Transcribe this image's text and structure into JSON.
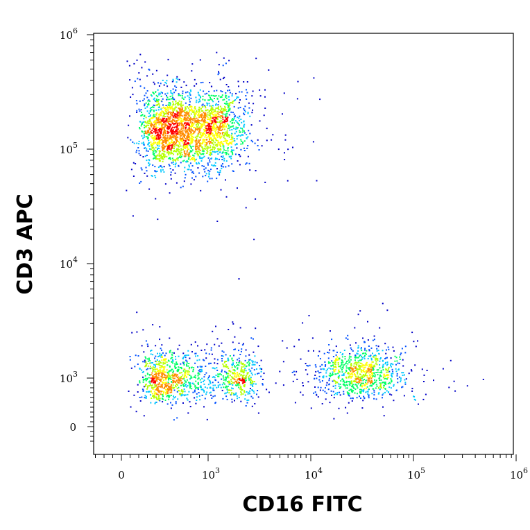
{
  "chart_data": {
    "type": "scatter",
    "style": "density dot plot (flow cytometry)",
    "xlabel": "CD16 FITC",
    "ylabel": "CD3 APC",
    "x_scale": "biexponential",
    "y_scale": "biexponential",
    "xlim": [
      -300,
      1000000
    ],
    "ylim": [
      -300,
      1000000
    ],
    "x_ticks": [
      {
        "base": "0",
        "exp": "",
        "value": 0
      },
      {
        "base": "10",
        "exp": "3",
        "value": 1000
      },
      {
        "base": "10",
        "exp": "4",
        "value": 10000
      },
      {
        "base": "10",
        "exp": "5",
        "value": 100000
      },
      {
        "base": "10",
        "exp": "6",
        "value": 1000000
      }
    ],
    "y_ticks": [
      {
        "base": "0",
        "exp": "",
        "value": 0
      },
      {
        "base": "10",
        "exp": "3",
        "value": 1000
      },
      {
        "base": "10",
        "exp": "4",
        "value": 10000
      },
      {
        "base": "10",
        "exp": "5",
        "value": 100000
      },
      {
        "base": "10",
        "exp": "6",
        "value": 1000000
      }
    ],
    "grid": false,
    "density_colors": [
      "#0000c8",
      "#0050ff",
      "#00c8ff",
      "#00ff64",
      "#b4ff00",
      "#ffff00",
      "#ff8c00",
      "#ff0000"
    ],
    "populations": [
      {
        "x_center": 750,
        "y_center": 150000,
        "x_spread_decades": 0.22,
        "y_spread_decades": 0.17,
        "events": 2600
      },
      {
        "x_center": 550,
        "y_center": 1000,
        "x_spread_decades": 0.18,
        "y_spread_decades": 0.12,
        "events": 900
      },
      {
        "x_center": 2000,
        "y_center": 1050,
        "x_spread_decades": 0.1,
        "y_spread_decades": 0.12,
        "events": 350
      },
      {
        "x_center": 30000,
        "y_center": 1100,
        "x_spread_decades": 0.22,
        "y_spread_decades": 0.12,
        "events": 900
      }
    ]
  }
}
